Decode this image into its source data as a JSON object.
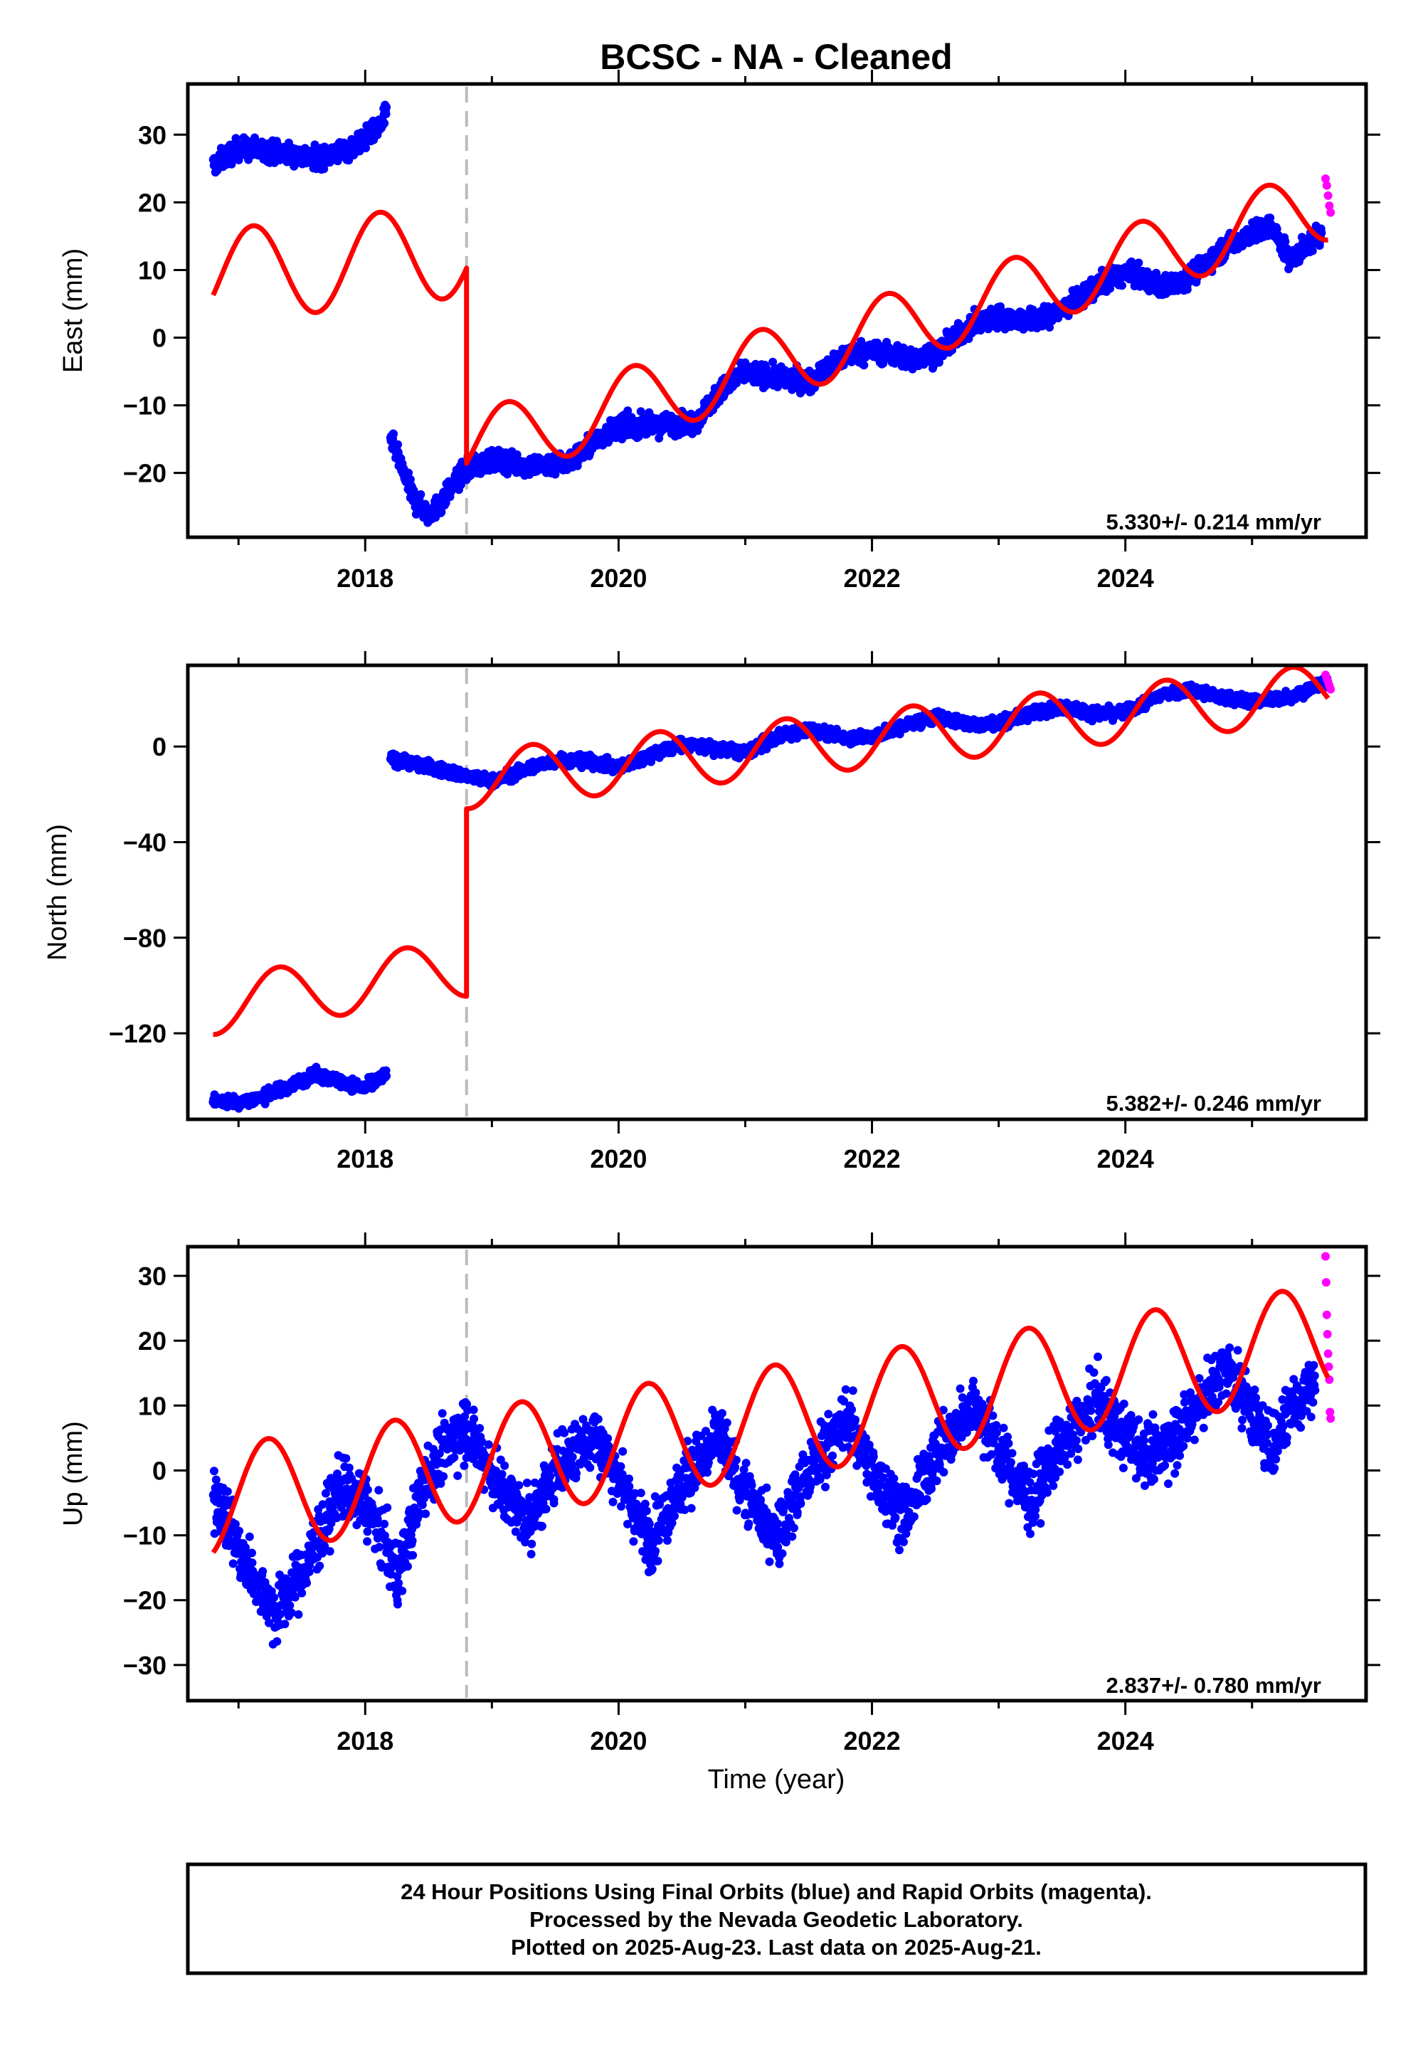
{
  "title": "BCSC  - NA - Cleaned",
  "xlabel": "Time (year)",
  "footer": {
    "line1": "24 Hour Positions Using Final Orbits (blue) and Rapid Orbits (magenta).",
    "line2": "Processed by the Nevada Geodetic Laboratory.",
    "line3": "Plotted on 2025-Aug-23. Last data on 2025-Aug-21."
  },
  "colors": {
    "final": "#0000ff",
    "rapid": "#ff00ff",
    "model": "#ff0000",
    "break": "#bbbbbb",
    "frame": "#000000"
  },
  "chart_data": [
    {
      "type": "scatter",
      "component": "East",
      "ylabel": "East (mm)",
      "rate_label": "5.330+/- 0.214 mm/yr",
      "xlim": [
        2016.6,
        2025.9
      ],
      "ylim": [
        -29.5,
        37.5
      ],
      "yticks": [
        -20,
        -10,
        0,
        10,
        20,
        30
      ],
      "xticks": [
        2018,
        2020,
        2022,
        2024
      ],
      "equipment_change_year": 2018.8,
      "series": [
        {
          "name": "Final Orbits (blue)",
          "segments": [
            {
              "x": [
                2016.8,
                2017.0,
                2017.3,
                2017.6,
                2017.9,
                2018.1,
                2018.17
              ],
              "y": [
                25.5,
                28.0,
                27.5,
                26.5,
                28.0,
                31.0,
                33.0
              ]
            },
            {
              "x": [
                2018.2,
                2018.3,
                2018.4,
                2018.5,
                2018.6,
                2018.7,
                2018.8,
                2019.0,
                2019.3,
                2019.6,
                2019.8,
                2020.0,
                2020.3,
                2020.6,
                2020.8,
                2021.0,
                2021.3,
                2021.5,
                2021.8,
                2022.0,
                2022.3,
                2022.5,
                2022.8,
                2023.0,
                2023.3,
                2023.5,
                2023.8,
                2024.0,
                2024.3,
                2024.5,
                2024.8,
                2025.0,
                2025.15,
                2025.3,
                2025.55
              ],
              "y": [
                -14.5,
                -20.0,
                -24.5,
                -26.0,
                -24.5,
                -21.5,
                -19.5,
                -18.0,
                -19.0,
                -18.5,
                -15.5,
                -13.0,
                -13.0,
                -12.5,
                -8.0,
                -5.0,
                -6.0,
                -6.5,
                -2.5,
                -2.0,
                -3.0,
                -2.5,
                2.0,
                3.0,
                2.5,
                4.0,
                8.0,
                9.5,
                7.5,
                9.0,
                13.5,
                15.5,
                16.5,
                11.5,
                15.5
              ]
            }
          ]
        },
        {
          "name": "Rapid Orbits (magenta)",
          "x": [
            2025.58,
            2025.59,
            2025.6,
            2025.61,
            2025.62
          ],
          "y": [
            23.5,
            22.5,
            21.0,
            19.5,
            18.5
          ]
        },
        {
          "name": "Model",
          "params": {
            "rate": 5.33,
            "t0": 2018.8,
            "pre_offset": 9.0,
            "pre_trend": 2.0,
            "post_offset": -16.5,
            "c": 4.0,
            "d": 3.5,
            "t_shift": 2018.8
          }
        }
      ]
    },
    {
      "type": "scatter",
      "component": "North",
      "ylabel": "North (mm)",
      "rate_label": "5.382+/- 0.246 mm/yr",
      "xlim": [
        2016.6,
        2025.9
      ],
      "ylim": [
        -156,
        34
      ],
      "yticks": [
        -120,
        -80,
        -40,
        0
      ],
      "xticks": [
        2018,
        2020,
        2022,
        2024
      ],
      "equipment_change_year": 2018.8,
      "series": [
        {
          "name": "Final Orbits (blue)",
          "segments": [
            {
              "x": [
                2016.8,
                2017.0,
                2017.2,
                2017.4,
                2017.6,
                2017.8,
                2018.0,
                2018.17
              ],
              "y": [
                -148.0,
                -149.0,
                -146.5,
                -142.0,
                -137.5,
                -140.0,
                -143.0,
                -137.0
              ]
            },
            {
              "x": [
                2018.2,
                2018.5,
                2018.8,
                2019.0,
                2019.3,
                2019.5,
                2019.8,
                2020.0,
                2020.3,
                2020.5,
                2020.8,
                2021.0,
                2021.3,
                2021.5,
                2021.8,
                2022.0,
                2022.3,
                2022.5,
                2022.8,
                2023.0,
                2023.3,
                2023.5,
                2023.8,
                2024.0,
                2024.3,
                2024.5,
                2024.8,
                2025.0,
                2025.3,
                2025.6
              ],
              "y": [
                -5.0,
                -8.5,
                -12.5,
                -14.5,
                -9.0,
                -5.5,
                -6.5,
                -9.0,
                -2.5,
                1.0,
                -1.0,
                -2.5,
                5.0,
                7.0,
                4.0,
                4.0,
                9.5,
                12.5,
                9.0,
                10.0,
                14.5,
                16.5,
                13.5,
                14.5,
                22.0,
                24.0,
                20.0,
                19.0,
                21.0,
                27.0
              ]
            }
          ]
        },
        {
          "name": "Rapid Orbits (magenta)",
          "x": [
            2025.58,
            2025.59,
            2025.6,
            2025.61,
            2025.62
          ],
          "y": [
            30.0,
            28.5,
            27.0,
            25.5,
            24.0
          ]
        },
        {
          "name": "Model",
          "params": {
            "rate": 5.382,
            "t0": 2018.8,
            "pre_offset": -108.5,
            "pre_trend": 8.0,
            "post_offset": -14.0,
            "c": -5.0,
            "d": 11.0
          }
        }
      ]
    },
    {
      "type": "scatter",
      "component": "Up",
      "ylabel": "Up (mm)",
      "rate_label": "2.837+/- 0.780 mm/yr",
      "xlim": [
        2016.6,
        2025.9
      ],
      "ylim": [
        -35.5,
        34.5
      ],
      "yticks": [
        -30,
        -20,
        -10,
        0,
        10,
        20,
        30
      ],
      "xticks": [
        2018,
        2020,
        2022,
        2024
      ],
      "equipment_change_year": 2018.8,
      "series": [
        {
          "name": "Final Orbits (blue)",
          "segments": [
            {
              "x": [
                2016.8,
                2017.0,
                2017.3,
                2017.5,
                2017.8,
                2018.0,
                2018.25,
                2018.5,
                2018.8,
                2019.0,
                2019.3,
                2019.5,
                2019.8,
                2020.0,
                2020.25,
                2020.5,
                2020.8,
                2021.0,
                2021.25,
                2021.5,
                2021.8,
                2022.0,
                2022.25,
                2022.5,
                2022.8,
                2023.0,
                2023.25,
                2023.5,
                2023.8,
                2024.0,
                2024.25,
                2024.5,
                2024.8,
                2025.0,
                2025.15,
                2025.3,
                2025.5
              ],
              "y": [
                -3.0,
                -12.0,
                -22.0,
                -16.0,
                -3.0,
                -5.0,
                -16.0,
                0.0,
                7.0,
                -1.0,
                -8.0,
                0.0,
                6.0,
                -1.0,
                -11.0,
                -2.0,
                5.0,
                -3.0,
                -10.0,
                0.0,
                8.0,
                0.0,
                -7.0,
                2.0,
                11.0,
                3.0,
                -5.0,
                4.0,
                11.0,
                5.0,
                2.0,
                8.0,
                16.0,
                9.0,
                3.0,
                10.0,
                14.0
              ]
            }
          ]
        },
        {
          "name": "Rapid Orbits (magenta)",
          "x": [
            2025.58,
            2025.585,
            2025.59,
            2025.595,
            2025.6,
            2025.605,
            2025.61,
            2025.615,
            2025.62
          ],
          "y": [
            33.0,
            29.0,
            24.0,
            21.0,
            18.0,
            16.0,
            14.0,
            9.0,
            8.0
          ]
        },
        {
          "name": "Model",
          "params": {
            "rate": 2.837,
            "t0": 2018.8,
            "offset": 0.8,
            "c": 1.0,
            "d": 8.5
          }
        }
      ]
    }
  ]
}
